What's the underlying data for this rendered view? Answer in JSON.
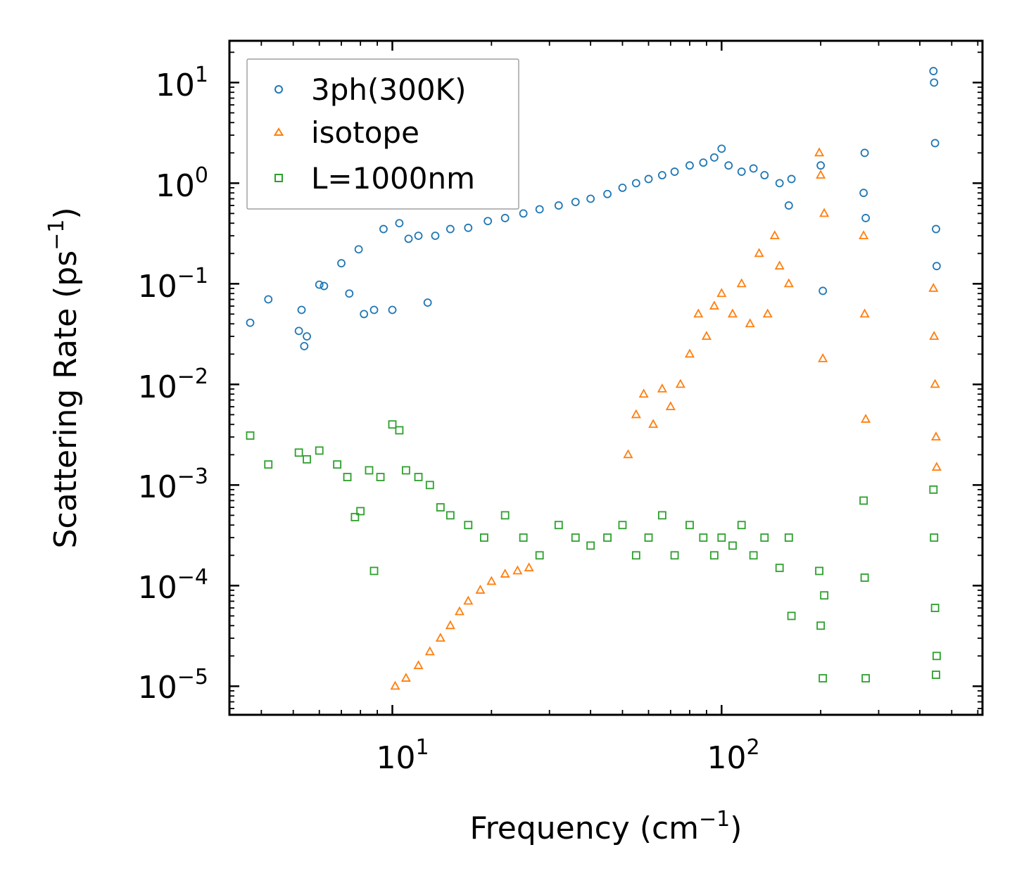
{
  "chart_data": {
    "type": "scatter",
    "title": "",
    "xlabel_main": "Frequency (cm",
    "xlabel_sup": "−1",
    "xlabel_close": ")",
    "ylabel_main": "Scattering Rate (ps",
    "ylabel_sup": "−1",
    "ylabel_close": ")",
    "xscale": "log",
    "yscale": "log",
    "xlim": [
      3.2,
      620
    ],
    "ylim": [
      5.2e-06,
      26
    ],
    "x_ticks": [
      {
        "value": 10,
        "base": "10",
        "exp": "1"
      },
      {
        "value": 100,
        "base": "10",
        "exp": "2"
      }
    ],
    "y_ticks": [
      {
        "value": 10,
        "base": "10",
        "exp": "1"
      },
      {
        "value": 1,
        "base": "10",
        "exp": "0"
      },
      {
        "value": 0.1,
        "base": "10",
        "exp": "−1"
      },
      {
        "value": 0.01,
        "base": "10",
        "exp": "−2"
      },
      {
        "value": 0.001,
        "base": "10",
        "exp": "−3"
      },
      {
        "value": 0.0001,
        "base": "10",
        "exp": "−4"
      },
      {
        "value": 1e-05,
        "base": "10",
        "exp": "−5"
      }
    ],
    "legend_position": "top-left",
    "series": [
      {
        "name": "3ph(300K)",
        "marker": "circle",
        "color": "#1f77b4",
        "x": [
          3.7,
          4.2,
          5.2,
          5.3,
          5.4,
          5.5,
          6.0,
          6.2,
          7.0,
          7.4,
          7.9,
          8.2,
          8.8,
          9.4,
          10.0,
          10.5,
          11.2,
          12.0,
          12.8,
          13.5,
          15.0,
          17.0,
          19.5,
          22.0,
          25.0,
          28.0,
          32.0,
          36.0,
          40.0,
          45.0,
          50.0,
          55.0,
          60.0,
          66.0,
          72.0,
          80.0,
          88.0,
          95.0,
          100.0,
          105.0,
          115.0,
          125.0,
          135.0,
          150.0,
          160.0,
          163.0,
          200.0,
          203.0,
          270.0,
          272.0,
          274.0,
          440.0,
          442.0,
          445.0,
          448.0,
          450.0
        ],
        "y": [
          0.041,
          0.07,
          0.034,
          0.055,
          0.024,
          0.03,
          0.098,
          0.095,
          0.16,
          0.08,
          0.22,
          0.05,
          0.055,
          0.35,
          0.055,
          0.4,
          0.28,
          0.3,
          0.065,
          0.3,
          0.35,
          0.36,
          0.42,
          0.45,
          0.5,
          0.55,
          0.6,
          0.65,
          0.7,
          0.78,
          0.9,
          1.0,
          1.1,
          1.2,
          1.3,
          1.5,
          1.6,
          1.8,
          2.2,
          1.5,
          1.3,
          1.4,
          1.2,
          1.0,
          0.6,
          1.1,
          1.5,
          0.085,
          0.8,
          2.0,
          0.45,
          13.0,
          10.0,
          2.5,
          0.35,
          0.15
        ]
      },
      {
        "name": "isotope",
        "marker": "triangle",
        "color": "#ff7f0e",
        "x": [
          10.2,
          11.0,
          12.0,
          13.0,
          14.0,
          15.0,
          16.0,
          17.0,
          18.5,
          20.0,
          22.0,
          24.0,
          26.0,
          52.0,
          55.0,
          58.0,
          62.0,
          66.0,
          70.0,
          75.0,
          80.0,
          85.0,
          90.0,
          95.0,
          100.0,
          108.0,
          115.0,
          122.0,
          130.0,
          138.0,
          145.0,
          150.0,
          160.0,
          198.0,
          200.0,
          203.0,
          205.0,
          270.0,
          272.0,
          274.0,
          440.0,
          442.0,
          445.0,
          448.0,
          450.0
        ],
        "y": [
          1e-05,
          1.2e-05,
          1.6e-05,
          2.2e-05,
          3e-05,
          4e-05,
          5.5e-05,
          7e-05,
          9e-05,
          0.00011,
          0.00013,
          0.00014,
          0.00015,
          0.002,
          0.005,
          0.008,
          0.004,
          0.009,
          0.006,
          0.01,
          0.02,
          0.05,
          0.03,
          0.06,
          0.08,
          0.05,
          0.1,
          0.04,
          0.2,
          0.05,
          0.3,
          0.15,
          0.1,
          2.0,
          1.2,
          0.018,
          0.5,
          0.3,
          0.05,
          0.0045,
          0.09,
          0.03,
          0.01,
          0.003,
          0.0015
        ]
      },
      {
        "name": "L=1000nm",
        "marker": "square",
        "color": "#2ca02c",
        "x": [
          3.7,
          4.2,
          5.2,
          5.5,
          6.0,
          6.8,
          7.3,
          7.7,
          8.0,
          8.5,
          8.8,
          9.2,
          10.0,
          10.5,
          11.0,
          12.0,
          13.0,
          14.0,
          15.0,
          17.0,
          19.0,
          22.0,
          25.0,
          28.0,
          32.0,
          36.0,
          40.0,
          45.0,
          50.0,
          55.0,
          60.0,
          66.0,
          72.0,
          80.0,
          88.0,
          95.0,
          100.0,
          108.0,
          115.0,
          125.0,
          135.0,
          150.0,
          160.0,
          163.0,
          198.0,
          200.0,
          203.0,
          205.0,
          270.0,
          272.0,
          274.0,
          440.0,
          442.0,
          445.0,
          448.0,
          450.0
        ],
        "y": [
          0.0031,
          0.0016,
          0.0021,
          0.0018,
          0.0022,
          0.0016,
          0.0012,
          0.00048,
          0.00055,
          0.0014,
          0.00014,
          0.0012,
          0.004,
          0.0035,
          0.0014,
          0.0012,
          0.001,
          0.0006,
          0.0005,
          0.0004,
          0.0003,
          0.0005,
          0.0003,
          0.0002,
          0.0004,
          0.0003,
          0.00025,
          0.0003,
          0.0004,
          0.0002,
          0.0003,
          0.0005,
          0.0002,
          0.0004,
          0.0003,
          0.0002,
          0.0003,
          0.00025,
          0.0004,
          0.0002,
          0.0003,
          0.00015,
          0.0003,
          5e-05,
          0.00014,
          4e-05,
          1.2e-05,
          8e-05,
          0.0007,
          0.00012,
          1.2e-05,
          0.0009,
          0.0003,
          6e-05,
          1.3e-05,
          2e-05
        ]
      }
    ]
  }
}
